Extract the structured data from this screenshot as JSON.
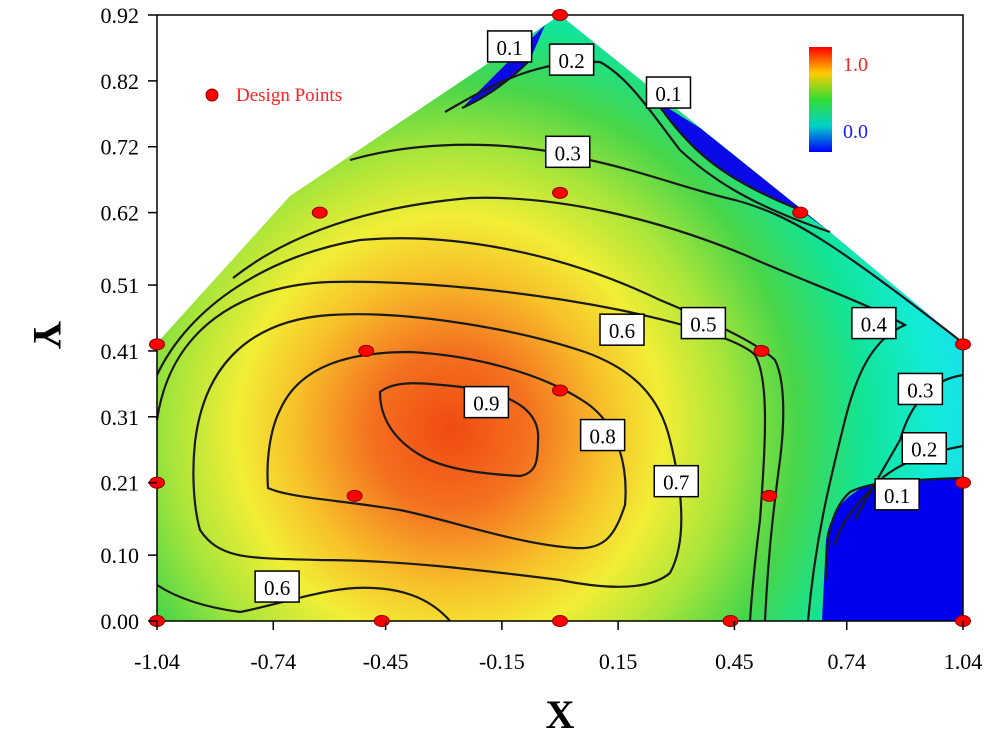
{
  "chart_data": {
    "type": "contour",
    "xlabel": "X",
    "ylabel": "Y",
    "xlim": [
      -1.04,
      1.04
    ],
    "ylim": [
      0.0,
      0.92
    ],
    "x_ticks": [
      "-1.04",
      "-0.74",
      "-0.45",
      "-0.15",
      "0.15",
      "0.45",
      "0.74",
      "1.04"
    ],
    "x_tick_values": [
      -1.04,
      -0.74,
      -0.45,
      -0.15,
      0.15,
      0.45,
      0.74,
      1.04
    ],
    "y_ticks": [
      "0.00",
      "0.10",
      "0.21",
      "0.31",
      "0.41",
      "0.51",
      "0.62",
      "0.72",
      "0.82",
      "0.92"
    ],
    "y_tick_values": [
      0.0,
      0.1,
      0.21,
      0.31,
      0.41,
      0.51,
      0.62,
      0.72,
      0.82,
      0.92
    ],
    "region_boundary": [
      [
        -1.04,
        0.0
      ],
      [
        1.04,
        0.0
      ],
      [
        1.04,
        0.43
      ],
      [
        0.7,
        0.63
      ],
      [
        0.0,
        0.92
      ],
      [
        -0.7,
        0.63
      ],
      [
        -1.04,
        0.43
      ]
    ],
    "colorbar": {
      "max_label": "1.0",
      "min_label": "0.0",
      "max_color": "#ff0000",
      "min_color": "#0000ff"
    },
    "legend": {
      "label": "Design Points",
      "marker_color": "#ff0000",
      "position": "top-left"
    },
    "design_points": [
      {
        "x": -1.04,
        "y": 0.0
      },
      {
        "x": -0.46,
        "y": 0.0
      },
      {
        "x": 0.0,
        "y": 0.0
      },
      {
        "x": 0.44,
        "y": 0.0
      },
      {
        "x": 1.04,
        "y": 0.0
      },
      {
        "x": -1.04,
        "y": 0.21
      },
      {
        "x": -0.53,
        "y": 0.19
      },
      {
        "x": 0.54,
        "y": 0.19
      },
      {
        "x": 1.04,
        "y": 0.21
      },
      {
        "x": 0.0,
        "y": 0.35
      },
      {
        "x": -1.04,
        "y": 0.42
      },
      {
        "x": -0.5,
        "y": 0.41
      },
      {
        "x": 0.52,
        "y": 0.41
      },
      {
        "x": 1.04,
        "y": 0.42
      },
      {
        "x": -0.62,
        "y": 0.62
      },
      {
        "x": 0.0,
        "y": 0.65
      },
      {
        "x": 0.62,
        "y": 0.62
      },
      {
        "x": 0.0,
        "y": 0.92
      }
    ],
    "contour_levels": [
      0.1,
      0.2,
      0.3,
      0.4,
      0.5,
      0.6,
      0.7,
      0.8,
      0.9
    ],
    "contour_labels": [
      {
        "text": "0.1",
        "x": -0.13,
        "y": 0.87
      },
      {
        "text": "0.2",
        "x": 0.03,
        "y": 0.85
      },
      {
        "text": "0.1",
        "x": 0.28,
        "y": 0.8
      },
      {
        "text": "0.3",
        "x": 0.02,
        "y": 0.71
      },
      {
        "text": "0.6",
        "x": 0.16,
        "y": 0.44
      },
      {
        "text": "0.5",
        "x": 0.37,
        "y": 0.45
      },
      {
        "text": "0.4",
        "x": 0.81,
        "y": 0.45
      },
      {
        "text": "0.9",
        "x": -0.19,
        "y": 0.33
      },
      {
        "text": "0.8",
        "x": 0.11,
        "y": 0.28
      },
      {
        "text": "0.3",
        "x": 0.93,
        "y": 0.35
      },
      {
        "text": "0.7",
        "x": 0.3,
        "y": 0.21
      },
      {
        "text": "0.2",
        "x": 0.94,
        "y": 0.26
      },
      {
        "text": "0.1",
        "x": 0.87,
        "y": 0.19
      },
      {
        "text": "0.6",
        "x": -0.73,
        "y": 0.05
      }
    ]
  }
}
